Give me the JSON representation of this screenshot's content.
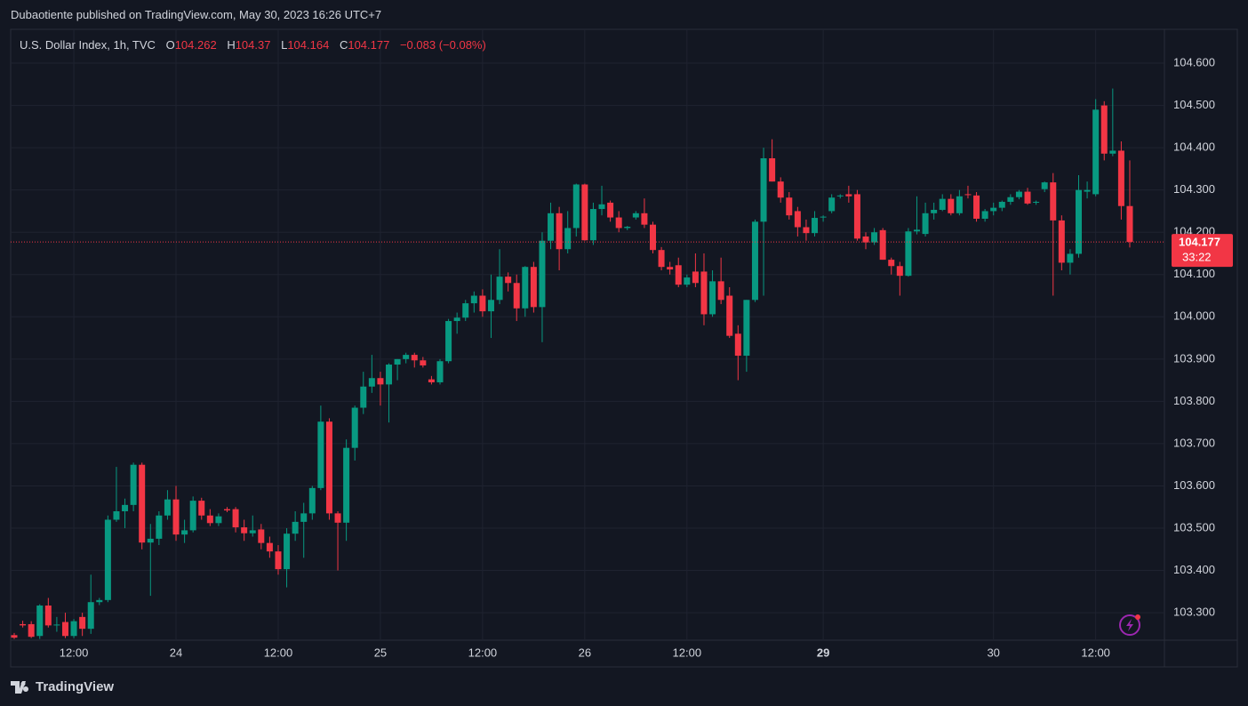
{
  "header": {
    "published": "Dubaotiente published on TradingView.com, May 30, 2023 16:26 UTC+7",
    "brand": "TradingView"
  },
  "legend": {
    "symbol": "U.S. Dollar Index, 1h, TVC",
    "labels": [
      "O",
      "H",
      "L",
      "C"
    ],
    "change": "−0.083 (−0.08%)",
    "countdown": "33:22"
  },
  "chart_data": {
    "type": "candlestick",
    "up_color": "#089981",
    "down_color": "#f23645",
    "categories": [
      null,
      null,
      null,
      null,
      null,
      null,
      null,
      "12:00",
      null,
      null,
      null,
      null,
      null,
      null,
      null,
      null,
      null,
      null,
      null,
      "24",
      null,
      null,
      null,
      null,
      null,
      null,
      null,
      null,
      null,
      null,
      null,
      "12:00",
      null,
      null,
      null,
      null,
      null,
      null,
      null,
      null,
      null,
      null,
      null,
      "25",
      null,
      null,
      null,
      null,
      null,
      null,
      null,
      null,
      null,
      null,
      null,
      "12:00",
      null,
      null,
      null,
      null,
      null,
      null,
      null,
      null,
      null,
      null,
      null,
      "26",
      null,
      null,
      null,
      null,
      null,
      null,
      null,
      null,
      null,
      null,
      null,
      "12:00",
      null,
      null,
      null,
      null,
      null,
      null,
      null,
      null,
      null,
      null,
      null,
      null,
      null,
      null,
      null,
      "29",
      null,
      null,
      null,
      null,
      null,
      null,
      null,
      null,
      null,
      null,
      null,
      null,
      null,
      null,
      null,
      null,
      null,
      null,
      null,
      "30",
      null,
      null,
      null,
      null,
      null,
      null,
      null,
      null,
      null,
      null,
      null,
      "12:00",
      null,
      null,
      null,
      null
    ],
    "open": [
      103.247,
      103.273,
      103.273,
      103.245,
      103.317,
      103.27,
      103.278,
      103.245,
      103.29,
      103.262,
      103.325,
      103.33,
      103.52,
      103.54,
      103.555,
      103.65,
      103.466,
      103.475,
      103.53,
      103.568,
      103.485,
      103.495,
      103.565,
      103.53,
      103.512,
      103.545,
      103.545,
      103.502,
      103.488,
      103.497,
      103.465,
      103.445,
      103.403,
      103.487,
      103.515,
      103.535,
      103.595,
      103.752,
      103.535,
      103.513,
      103.69,
      103.785,
      103.835,
      103.855,
      103.84,
      103.887,
      103.9,
      103.91,
      103.897,
      103.852,
      103.845,
      103.895,
      103.99,
      103.998,
      104.032,
      104.05,
      104.013,
      104.04,
      104.095,
      104.08,
      104.02,
      104.118,
      104.023,
      104.18,
      104.245,
      104.16,
      104.21,
      104.313,
      104.181,
      104.255,
      104.27,
      104.235,
      104.21,
      104.235,
      104.245,
      104.218,
      104.158,
      104.118,
      104.122,
      104.076,
      104.107,
      104.107,
      104.006,
      104.084,
      104.05,
      103.96,
      103.908,
      104.04,
      104.225,
      104.375,
      104.32,
      104.282,
      104.25,
      104.212,
      104.198,
      104.236,
      104.25,
      104.285,
      104.29,
      104.29,
      104.19,
      104.176,
      104.205,
      104.135,
      104.12,
      104.097,
      104.202,
      104.196,
      104.245,
      104.253,
      104.279,
      104.245,
      104.29,
      104.287,
      104.232,
      104.25,
      104.258,
      104.272,
      104.283,
      104.296,
      104.27,
      104.302,
      104.318,
      104.228,
      104.128,
      104.149,
      104.296,
      104.29,
      104.5,
      104.386,
      104.393,
      104.262
    ],
    "high": [
      103.252,
      103.281,
      103.28,
      103.32,
      103.335,
      103.29,
      103.3,
      103.285,
      103.3,
      103.39,
      103.335,
      103.53,
      103.645,
      103.57,
      103.655,
      103.655,
      103.51,
      103.54,
      103.59,
      103.6,
      103.52,
      103.575,
      103.572,
      103.545,
      103.535,
      103.55,
      103.55,
      103.52,
      103.53,
      103.51,
      103.48,
      103.46,
      103.5,
      103.54,
      103.56,
      103.6,
      103.79,
      103.76,
      103.54,
      103.71,
      103.79,
      103.87,
      103.91,
      103.87,
      103.89,
      103.9,
      103.915,
      103.915,
      103.905,
      103.86,
      103.9,
      103.995,
      104.01,
      104.04,
      104.06,
      104.065,
      104.1,
      104.16,
      104.105,
      104.1,
      104.12,
      104.13,
      104.2,
      104.27,
      104.26,
      104.25,
      104.315,
      104.315,
      104.27,
      104.31,
      104.275,
      104.25,
      104.215,
      104.25,
      104.28,
      104.225,
      104.165,
      104.13,
      104.14,
      104.1,
      104.15,
      104.15,
      104.11,
      104.14,
      104.07,
      103.98,
      104.04,
      104.23,
      104.4,
      104.42,
      104.33,
      104.295,
      104.26,
      104.23,
      104.25,
      104.24,
      104.29,
      104.29,
      104.31,
      104.3,
      104.2,
      104.21,
      104.21,
      104.14,
      104.13,
      104.21,
      104.285,
      104.27,
      104.27,
      104.29,
      104.29,
      104.3,
      104.31,
      104.295,
      104.255,
      104.27,
      104.275,
      104.29,
      104.3,
      104.305,
      104.275,
      104.32,
      104.34,
      104.24,
      104.16,
      104.335,
      104.32,
      104.515,
      104.51,
      104.54,
      104.415,
      104.37
    ],
    "low": [
      103.238,
      103.265,
      103.24,
      103.238,
      103.265,
      103.255,
      103.24,
      103.24,
      103.245,
      103.25,
      103.318,
      103.325,
      103.515,
      103.5,
      103.54,
      103.45,
      103.34,
      103.46,
      103.52,
      103.47,
      103.465,
      103.49,
      103.52,
      103.505,
      103.505,
      103.538,
      103.49,
      103.47,
      103.48,
      103.45,
      103.43,
      103.39,
      103.36,
      103.47,
      103.43,
      103.52,
      103.59,
      103.52,
      103.4,
      103.47,
      103.66,
      103.77,
      103.82,
      103.79,
      103.75,
      103.85,
      103.89,
      103.88,
      103.88,
      103.84,
      103.84,
      103.89,
      103.96,
      103.99,
      104.01,
      104.0,
      103.95,
      104.03,
      104.06,
      103.99,
      104.0,
      104.01,
      103.94,
      104.16,
      104.11,
      104.15,
      104.19,
      104.18,
      104.17,
      104.24,
      104.225,
      104.2,
      104.205,
      104.23,
      104.21,
      104.15,
      104.11,
      104.1,
      104.07,
      104.07,
      104.07,
      103.98,
      104.0,
      104.03,
      103.95,
      103.85,
      103.87,
      104.035,
      104.05,
      104.32,
      104.27,
      104.23,
      104.19,
      104.18,
      104.19,
      104.225,
      104.245,
      104.28,
      104.27,
      104.18,
      104.16,
      104.17,
      104.135,
      104.1,
      104.05,
      104.095,
      104.195,
      104.19,
      104.23,
      104.25,
      104.24,
      104.24,
      104.28,
      104.225,
      104.225,
      104.24,
      104.25,
      104.265,
      104.278,
      104.265,
      104.265,
      104.295,
      104.05,
      104.11,
      104.1,
      104.14,
      104.28,
      104.285,
      104.37,
      104.38,
      104.23,
      104.164
    ],
    "close": [
      103.241,
      103.27,
      103.243,
      103.317,
      103.27,
      103.272,
      103.245,
      103.28,
      103.262,
      103.325,
      103.33,
      103.52,
      103.54,
      103.555,
      103.65,
      103.466,
      103.475,
      103.53,
      103.568,
      103.485,
      103.495,
      103.565,
      103.53,
      103.512,
      103.528,
      103.542,
      103.502,
      103.488,
      103.495,
      103.465,
      103.445,
      103.403,
      103.487,
      103.515,
      103.535,
      103.595,
      103.752,
      103.535,
      103.513,
      103.69,
      103.785,
      103.835,
      103.855,
      103.84,
      103.887,
      103.9,
      103.91,
      103.897,
      103.885,
      103.845,
      103.895,
      103.99,
      103.998,
      104.032,
      104.05,
      104.013,
      104.04,
      104.095,
      104.08,
      104.02,
      104.118,
      104.023,
      104.18,
      104.245,
      104.16,
      104.21,
      104.313,
      104.181,
      104.255,
      104.266,
      104.235,
      104.21,
      104.213,
      104.245,
      104.218,
      104.158,
      104.118,
      104.112,
      104.076,
      104.093,
      104.08,
      104.006,
      104.084,
      104.04,
      103.955,
      103.908,
      104.04,
      104.225,
      104.375,
      104.32,
      104.282,
      104.24,
      104.212,
      104.198,
      104.234,
      104.237,
      104.282,
      104.287,
      104.285,
      104.185,
      104.176,
      104.2,
      104.135,
      104.12,
      104.097,
      104.202,
      104.206,
      104.245,
      104.253,
      104.279,
      104.245,
      104.285,
      104.289,
      104.232,
      104.25,
      104.258,
      104.272,
      104.283,
      104.296,
      104.268,
      104.272,
      104.318,
      104.228,
      104.128,
      104.149,
      104.3,
      104.3,
      104.49,
      104.386,
      104.393,
      104.262,
      104.177
    ],
    "ylim": [
      103.235,
      104.68
    ],
    "yticks": [
      {
        "value": 103.3,
        "label": "103.300"
      },
      {
        "value": 103.4,
        "label": "103.400"
      },
      {
        "value": 103.5,
        "label": "103.500"
      },
      {
        "value": 103.6,
        "label": "103.600"
      },
      {
        "value": 103.7,
        "label": "103.700"
      },
      {
        "value": 103.8,
        "label": "103.800"
      },
      {
        "value": 103.9,
        "label": "103.900"
      },
      {
        "value": 104.0,
        "label": "104.000"
      },
      {
        "value": 104.1,
        "label": "104.100"
      },
      {
        "value": 104.2,
        "label": "104.200"
      },
      {
        "value": 104.3,
        "label": "104.300"
      },
      {
        "value": 104.4,
        "label": "104.400"
      },
      {
        "value": 104.5,
        "label": "104.500"
      },
      {
        "value": 104.6,
        "label": "104.600"
      }
    ],
    "bold_categories": [
      "29"
    ],
    "grid": true
  }
}
